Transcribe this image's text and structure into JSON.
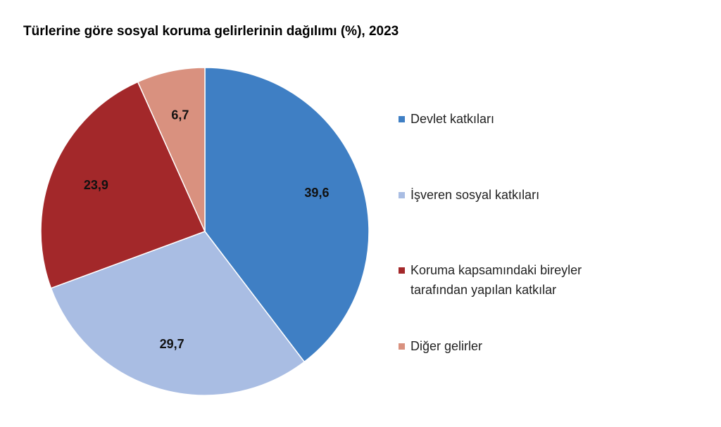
{
  "chart_data": {
    "type": "pie",
    "title": "Türlerine göre sosyal koruma gelirlerinin dağılımı (%), 2023",
    "categories": [
      "Devlet katkıları",
      "İşveren sosyal katkıları",
      "Koruma kapsamındaki bireyler tarafından yapılan katkılar",
      "Diğer gelirler"
    ],
    "values": [
      39.6,
      29.7,
      23.9,
      6.7
    ],
    "value_labels": [
      "39,6",
      "29,7",
      "23,9",
      "6,7"
    ],
    "colors": [
      "#3f7fc4",
      "#a9bde3",
      "#a3282a",
      "#d9917f"
    ],
    "legend": "right"
  }
}
